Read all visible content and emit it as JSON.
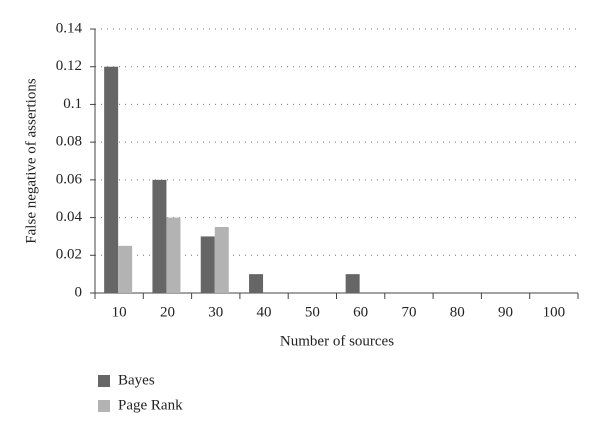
{
  "chart_data": {
    "type": "bar",
    "x_label": "Number of sources",
    "y_label": "False negative of assertions",
    "categories": [
      "10",
      "20",
      "30",
      "40",
      "50",
      "60",
      "70",
      "80",
      "90",
      "100"
    ],
    "series": [
      {
        "name": "Bayes",
        "color": "#666666",
        "values": [
          0.12,
          0.06,
          0.03,
          0.01,
          0,
          0.01,
          0,
          0,
          0,
          0
        ]
      },
      {
        "name": "Page Rank",
        "color": "#b3b3b3",
        "values": [
          0.025,
          0.04,
          0.035,
          0,
          0,
          0,
          0,
          0,
          0,
          0
        ]
      }
    ],
    "ylim": [
      0,
      0.14
    ],
    "yticks": [
      0,
      0.02,
      0.04,
      0.06,
      0.08,
      0.1,
      0.12,
      0.14
    ],
    "grid": true,
    "legend": "bottom-left"
  }
}
